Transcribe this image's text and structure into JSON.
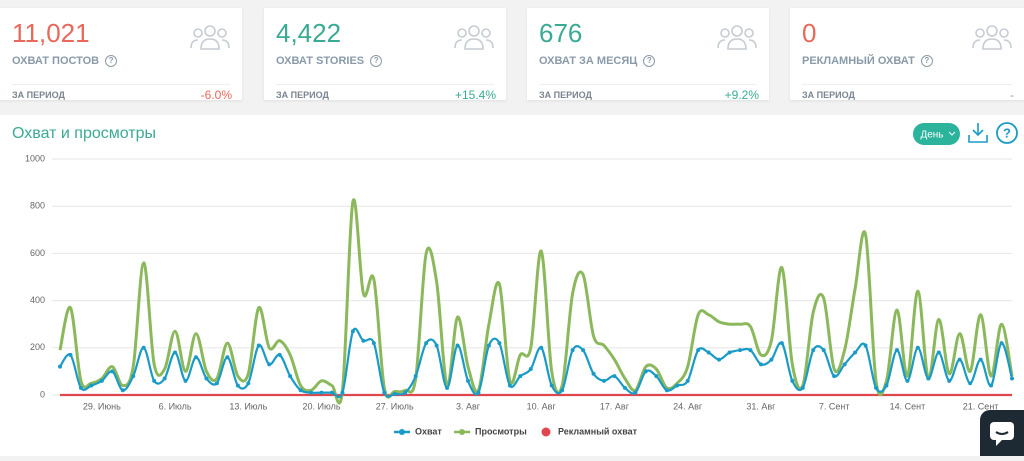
{
  "cards": [
    {
      "value": "11,021",
      "label": "ОХВАТ ПОСТОВ",
      "period": "ЗА ПЕРИОД",
      "change": "-6.0%"
    },
    {
      "value": "4,422",
      "label": "ОХВАТ STORIES",
      "period": "ЗА ПЕРИОД",
      "change": "+15.4%"
    },
    {
      "value": "676",
      "label": "ОХВАТ ЗА МЕСЯЦ",
      "period": "ЗА ПЕРИОД",
      "change": "+9.2%"
    },
    {
      "value": "0",
      "label": "РЕКЛАМНЫЙ ОХВАТ",
      "period": "ЗА ПЕРИОД",
      "change": "-"
    }
  ],
  "button": "День",
  "chart_data": {
    "type": "line",
    "title": "Охват и просмотры",
    "categories": [
      null,
      null,
      null,
      null,
      "29. Июнь",
      null,
      null,
      null,
      null,
      null,
      null,
      "6. Июль",
      null,
      null,
      null,
      null,
      null,
      null,
      "13. Июль",
      null,
      null,
      null,
      null,
      null,
      null,
      "20. Июль",
      null,
      null,
      null,
      null,
      null,
      null,
      "27. Июль",
      null,
      null,
      null,
      null,
      null,
      null,
      "3. Авг",
      null,
      null,
      null,
      null,
      null,
      null,
      "10. Авг",
      null,
      null,
      null,
      null,
      null,
      null,
      "17. Авг",
      null,
      null,
      null,
      null,
      null,
      null,
      "24. Авг",
      null,
      null,
      null,
      null,
      null,
      null,
      "31. Авг",
      null,
      null,
      null,
      null,
      null,
      null,
      "7. Сент",
      null,
      null,
      null,
      null,
      null,
      null,
      "14. Сент",
      null,
      null,
      null,
      null,
      null,
      null,
      "21. Сент",
      null,
      null,
      null
    ],
    "series": [
      {
        "name": "Охват",
        "color": "#1a9bc7",
        "values": [
          120,
          170,
          30,
          40,
          60,
          100,
          20,
          80,
          200,
          60,
          70,
          180,
          60,
          160,
          70,
          50,
          160,
          40,
          50,
          210,
          130,
          170,
          80,
          20,
          10,
          10,
          10,
          10,
          270,
          230,
          220,
          10,
          5,
          10,
          80,
          220,
          210,
          30,
          210,
          60,
          10,
          210,
          220,
          40,
          80,
          110,
          200,
          40,
          20,
          190,
          190,
          90,
          60,
          80,
          30,
          10,
          100,
          80,
          20,
          40,
          60,
          190,
          180,
          150,
          180,
          190,
          190,
          130,
          150,
          220,
          60,
          30,
          190,
          190,
          80,
          130,
          180,
          210,
          30,
          40,
          190,
          60,
          200,
          70,
          180,
          60,
          150,
          50,
          150,
          40,
          220,
          70
        ]
      },
      {
        "name": "Просмотры",
        "color": "#8cb85c",
        "values": [
          190,
          370,
          60,
          50,
          70,
          120,
          40,
          120,
          560,
          130,
          110,
          270,
          100,
          260,
          100,
          70,
          220,
          80,
          90,
          370,
          200,
          230,
          170,
          40,
          20,
          60,
          40,
          20,
          820,
          430,
          490,
          30,
          15,
          20,
          70,
          600,
          480,
          40,
          330,
          120,
          20,
          300,
          470,
          60,
          170,
          200,
          610,
          100,
          40,
          430,
          510,
          250,
          210,
          150,
          70,
          20,
          120,
          110,
          30,
          50,
          120,
          340,
          340,
          310,
          300,
          300,
          290,
          170,
          230,
          540,
          130,
          40,
          350,
          410,
          110,
          190,
          450,
          680,
          60,
          60,
          360,
          80,
          440,
          70,
          320,
          90,
          260,
          100,
          340,
          80,
          300,
          80
        ]
      },
      {
        "name": "Рекламный охват",
        "color": "#e0474c",
        "values": [
          0,
          0,
          0,
          0,
          0,
          0,
          0,
          0,
          0,
          0,
          0,
          0,
          0,
          0,
          0,
          0,
          0,
          0,
          0,
          0,
          0,
          0,
          0,
          0,
          0,
          0,
          0,
          0,
          0,
          0,
          0,
          0,
          0,
          0,
          0,
          0,
          0,
          0,
          0,
          0,
          0,
          0,
          0,
          0,
          0,
          0,
          0,
          0,
          0,
          0,
          0,
          0,
          0,
          0,
          0,
          0,
          0,
          0,
          0,
          0,
          0,
          0,
          0,
          0,
          0,
          0,
          0,
          0,
          0,
          0,
          0,
          0,
          0,
          0,
          0,
          0,
          0,
          0,
          0,
          0,
          0,
          0,
          0,
          0,
          0,
          0,
          0,
          0,
          0,
          0,
          0,
          0
        ]
      }
    ],
    "ylim": [
      0,
      1000
    ],
    "yticks": [
      0,
      200,
      400,
      600,
      800,
      1000
    ],
    "grid": true,
    "legend": "bottom"
  }
}
